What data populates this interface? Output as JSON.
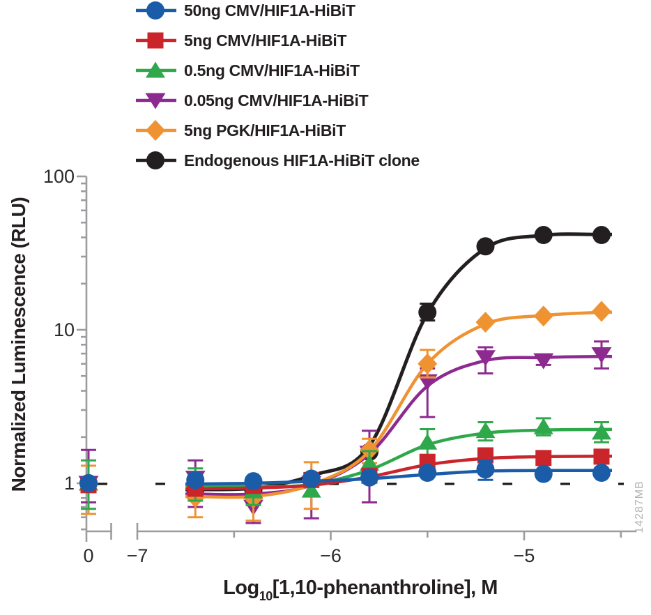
{
  "watermark": "14287MB",
  "colors": {
    "axis": "#9c9ca0",
    "text": "#231f20",
    "tick_text": "#2b2b2d",
    "watermark_text": "#b4b4b6",
    "baseline_dash": "#1a1a1a"
  },
  "axes": {
    "x": {
      "title_log": "Log",
      "title_sub": "10",
      "title_rest": "[1,10-phenanthroline], M",
      "tick_labels": [
        {
          "label": "0",
          "log": null
        },
        {
          "label": "−7",
          "log": -7
        },
        {
          "label": "−6",
          "log": -6
        },
        {
          "label": "−5",
          "log": -5
        }
      ]
    },
    "y": {
      "title": "Normalized Luminescence (RLU)",
      "tick_labels": [
        {
          "label": "100",
          "value": 100
        },
        {
          "label": "10",
          "value": 10
        },
        {
          "label": "1",
          "value": 1
        }
      ]
    }
  },
  "chart_data": {
    "type": "line",
    "title": "",
    "xlabel": "Log10[1,10-phenanthroline], M",
    "ylabel": "Normalized Luminescence (RLU)",
    "x_scale": "log10 molar, axis break between control (0) and -7",
    "y_scale": "log10",
    "ylim": [
      0.5,
      100
    ],
    "grid": false,
    "legend_position": "top-left",
    "baseline": 1.0,
    "control_label": "0",
    "x": [
      -6.7,
      -6.4,
      -6.1,
      -5.8,
      -5.5,
      -5.2,
      -4.9,
      -4.6
    ],
    "series": [
      {
        "name": "50ng CMV/HIF1A-HiBiT",
        "color": "#1b5ca8",
        "marker": "circle",
        "control_value": 1.0,
        "control_error": null,
        "values": [
          1.05,
          1.03,
          1.07,
          1.09,
          1.17,
          1.23,
          1.15,
          1.17
        ],
        "curve": [
          0.99,
          1.0,
          1.03,
          1.07,
          1.14,
          1.2,
          1.21,
          1.21
        ],
        "errors": [
          {
            "x": -5.2,
            "lo": 1.05,
            "hi": 1.4
          }
        ]
      },
      {
        "name": "5ng CMV/HIF1A-HiBiT",
        "color": "#c9252b",
        "marker": "square",
        "control_value": 0.97,
        "control_error": null,
        "values": [
          0.92,
          0.96,
          1.05,
          1.12,
          1.38,
          1.52,
          1.46,
          1.49
        ],
        "curve": [
          0.92,
          0.93,
          0.97,
          1.1,
          1.32,
          1.45,
          1.49,
          1.5
        ],
        "errors": []
      },
      {
        "name": "0.5ng CMV/HIF1A-HiBiT",
        "color": "#2fa84b",
        "marker": "triangle-up",
        "control_value": 1.0,
        "control_error": {
          "lo": 0.68,
          "hi": 1.41
        },
        "values": [
          1.01,
          0.89,
          0.9,
          1.35,
          1.85,
          2.2,
          2.33,
          2.15
        ],
        "curve": [
          0.97,
          0.95,
          0.98,
          1.22,
          1.78,
          2.12,
          2.22,
          2.24
        ],
        "errors": [
          {
            "x": -6.7,
            "lo": 0.77,
            "hi": 1.25
          },
          {
            "x": -6.4,
            "lo": 0.72,
            "hi": 1.05
          },
          {
            "x": -5.8,
            "lo": 1.1,
            "hi": 1.62
          },
          {
            "x": -5.5,
            "lo": 1.5,
            "hi": 2.25
          },
          {
            "x": -5.2,
            "lo": 1.9,
            "hi": 2.5
          },
          {
            "x": -4.9,
            "lo": 2.05,
            "hi": 2.65
          },
          {
            "x": -4.6,
            "lo": 1.85,
            "hi": 2.5
          }
        ]
      },
      {
        "name": "0.05ng CMV/HIF1A-HiBiT",
        "color": "#8d2a8f",
        "marker": "triangle-down",
        "control_value": 1.0,
        "control_error": {
          "lo": 0.75,
          "hi": 1.65
        },
        "values": [
          1.08,
          0.7,
          1.0,
          1.57,
          4.6,
          6.6,
          6.3,
          6.9
        ],
        "curve": [
          0.85,
          0.85,
          0.97,
          1.55,
          4.3,
          6.3,
          6.6,
          6.7
        ],
        "errors": [
          {
            "x": -6.7,
            "lo": 0.7,
            "hi": 1.41
          },
          {
            "x": -6.4,
            "lo": 0.55,
            "hi": 0.88
          },
          {
            "x": -6.1,
            "lo": 0.59,
            "hi": 1.1
          },
          {
            "x": -5.8,
            "lo": 0.75,
            "hi": 2.2
          },
          {
            "x": -5.5,
            "lo": 2.7,
            "hi": 5.6
          },
          {
            "x": -5.2,
            "lo": 5.2,
            "hi": 7.7
          },
          {
            "x": -4.9,
            "lo": 5.9,
            "hi": 6.8
          },
          {
            "x": -4.6,
            "lo": 5.6,
            "hi": 8.4
          }
        ]
      },
      {
        "name": "5ng PGK/HIF1A-HiBiT",
        "color": "#ef9232",
        "marker": "diamond",
        "control_value": 1.0,
        "control_error": {
          "lo": 0.63,
          "hi": 1.3
        },
        "values": [
          0.81,
          0.8,
          1.05,
          1.65,
          6.0,
          11.2,
          12.3,
          13.2
        ],
        "curve": [
          0.82,
          0.82,
          0.98,
          1.62,
          6.0,
          10.9,
          12.4,
          13.0
        ],
        "errors": [
          {
            "x": -6.7,
            "lo": 0.6,
            "hi": 0.98
          },
          {
            "x": -6.4,
            "lo": 0.57,
            "hi": 0.95
          },
          {
            "x": -6.1,
            "lo": 0.68,
            "hi": 1.37
          },
          {
            "x": -5.8,
            "lo": 1.35,
            "hi": 1.95
          },
          {
            "x": -5.5,
            "lo": 4.9,
            "hi": 7.4
          }
        ]
      },
      {
        "name": "Endogenous HIF1A-HiBiT clone",
        "color": "#231f20",
        "marker": "circle",
        "control_value": 1.0,
        "control_error": null,
        "values": [
          0.91,
          0.9,
          1.05,
          1.6,
          13.0,
          35.0,
          41.5,
          41.5
        ],
        "curve": [
          0.91,
          0.93,
          1.12,
          1.75,
          12.8,
          34.0,
          41.3,
          41.8
        ],
        "errors": [
          {
            "x": -5.5,
            "lo": 11.5,
            "hi": 14.8
          }
        ]
      }
    ]
  }
}
